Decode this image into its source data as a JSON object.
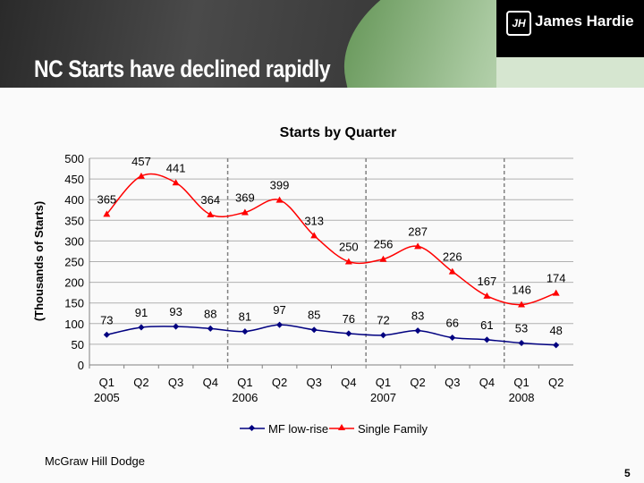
{
  "header": {
    "title": "NC Starts have declined rapidly",
    "logo": "James Hardie"
  },
  "footer": {
    "source": "McGraw Hill Dodge",
    "page": "5"
  },
  "chart_data": {
    "type": "line",
    "title": "Starts by Quarter",
    "ylabel": "(Thousands of Starts)",
    "xlabel": "",
    "ylim": [
      0,
      500
    ],
    "yticks": [
      0,
      50,
      100,
      150,
      200,
      250,
      300,
      350,
      400,
      450,
      500
    ],
    "categories": [
      "Q1",
      "Q2",
      "Q3",
      "Q4",
      "Q1",
      "Q2",
      "Q3",
      "Q4",
      "Q1",
      "Q2",
      "Q3",
      "Q4",
      "Q1",
      "Q2"
    ],
    "years": [
      "2005",
      "",
      "",
      "",
      "2006",
      "",
      "",
      "",
      "2007",
      "",
      "",
      "",
      "2008",
      ""
    ],
    "grid": true,
    "legend": "bottom",
    "series": [
      {
        "name": "MF low-rise",
        "color": "#000080",
        "marker": "diamond",
        "values": [
          73,
          91,
          93,
          88,
          81,
          97,
          85,
          76,
          72,
          83,
          66,
          61,
          53,
          48
        ]
      },
      {
        "name": "Single Family",
        "color": "#ff0000",
        "marker": "triangle",
        "values": [
          365,
          457,
          441,
          364,
          369,
          399,
          313,
          250,
          256,
          287,
          226,
          167,
          146,
          174
        ]
      }
    ]
  }
}
